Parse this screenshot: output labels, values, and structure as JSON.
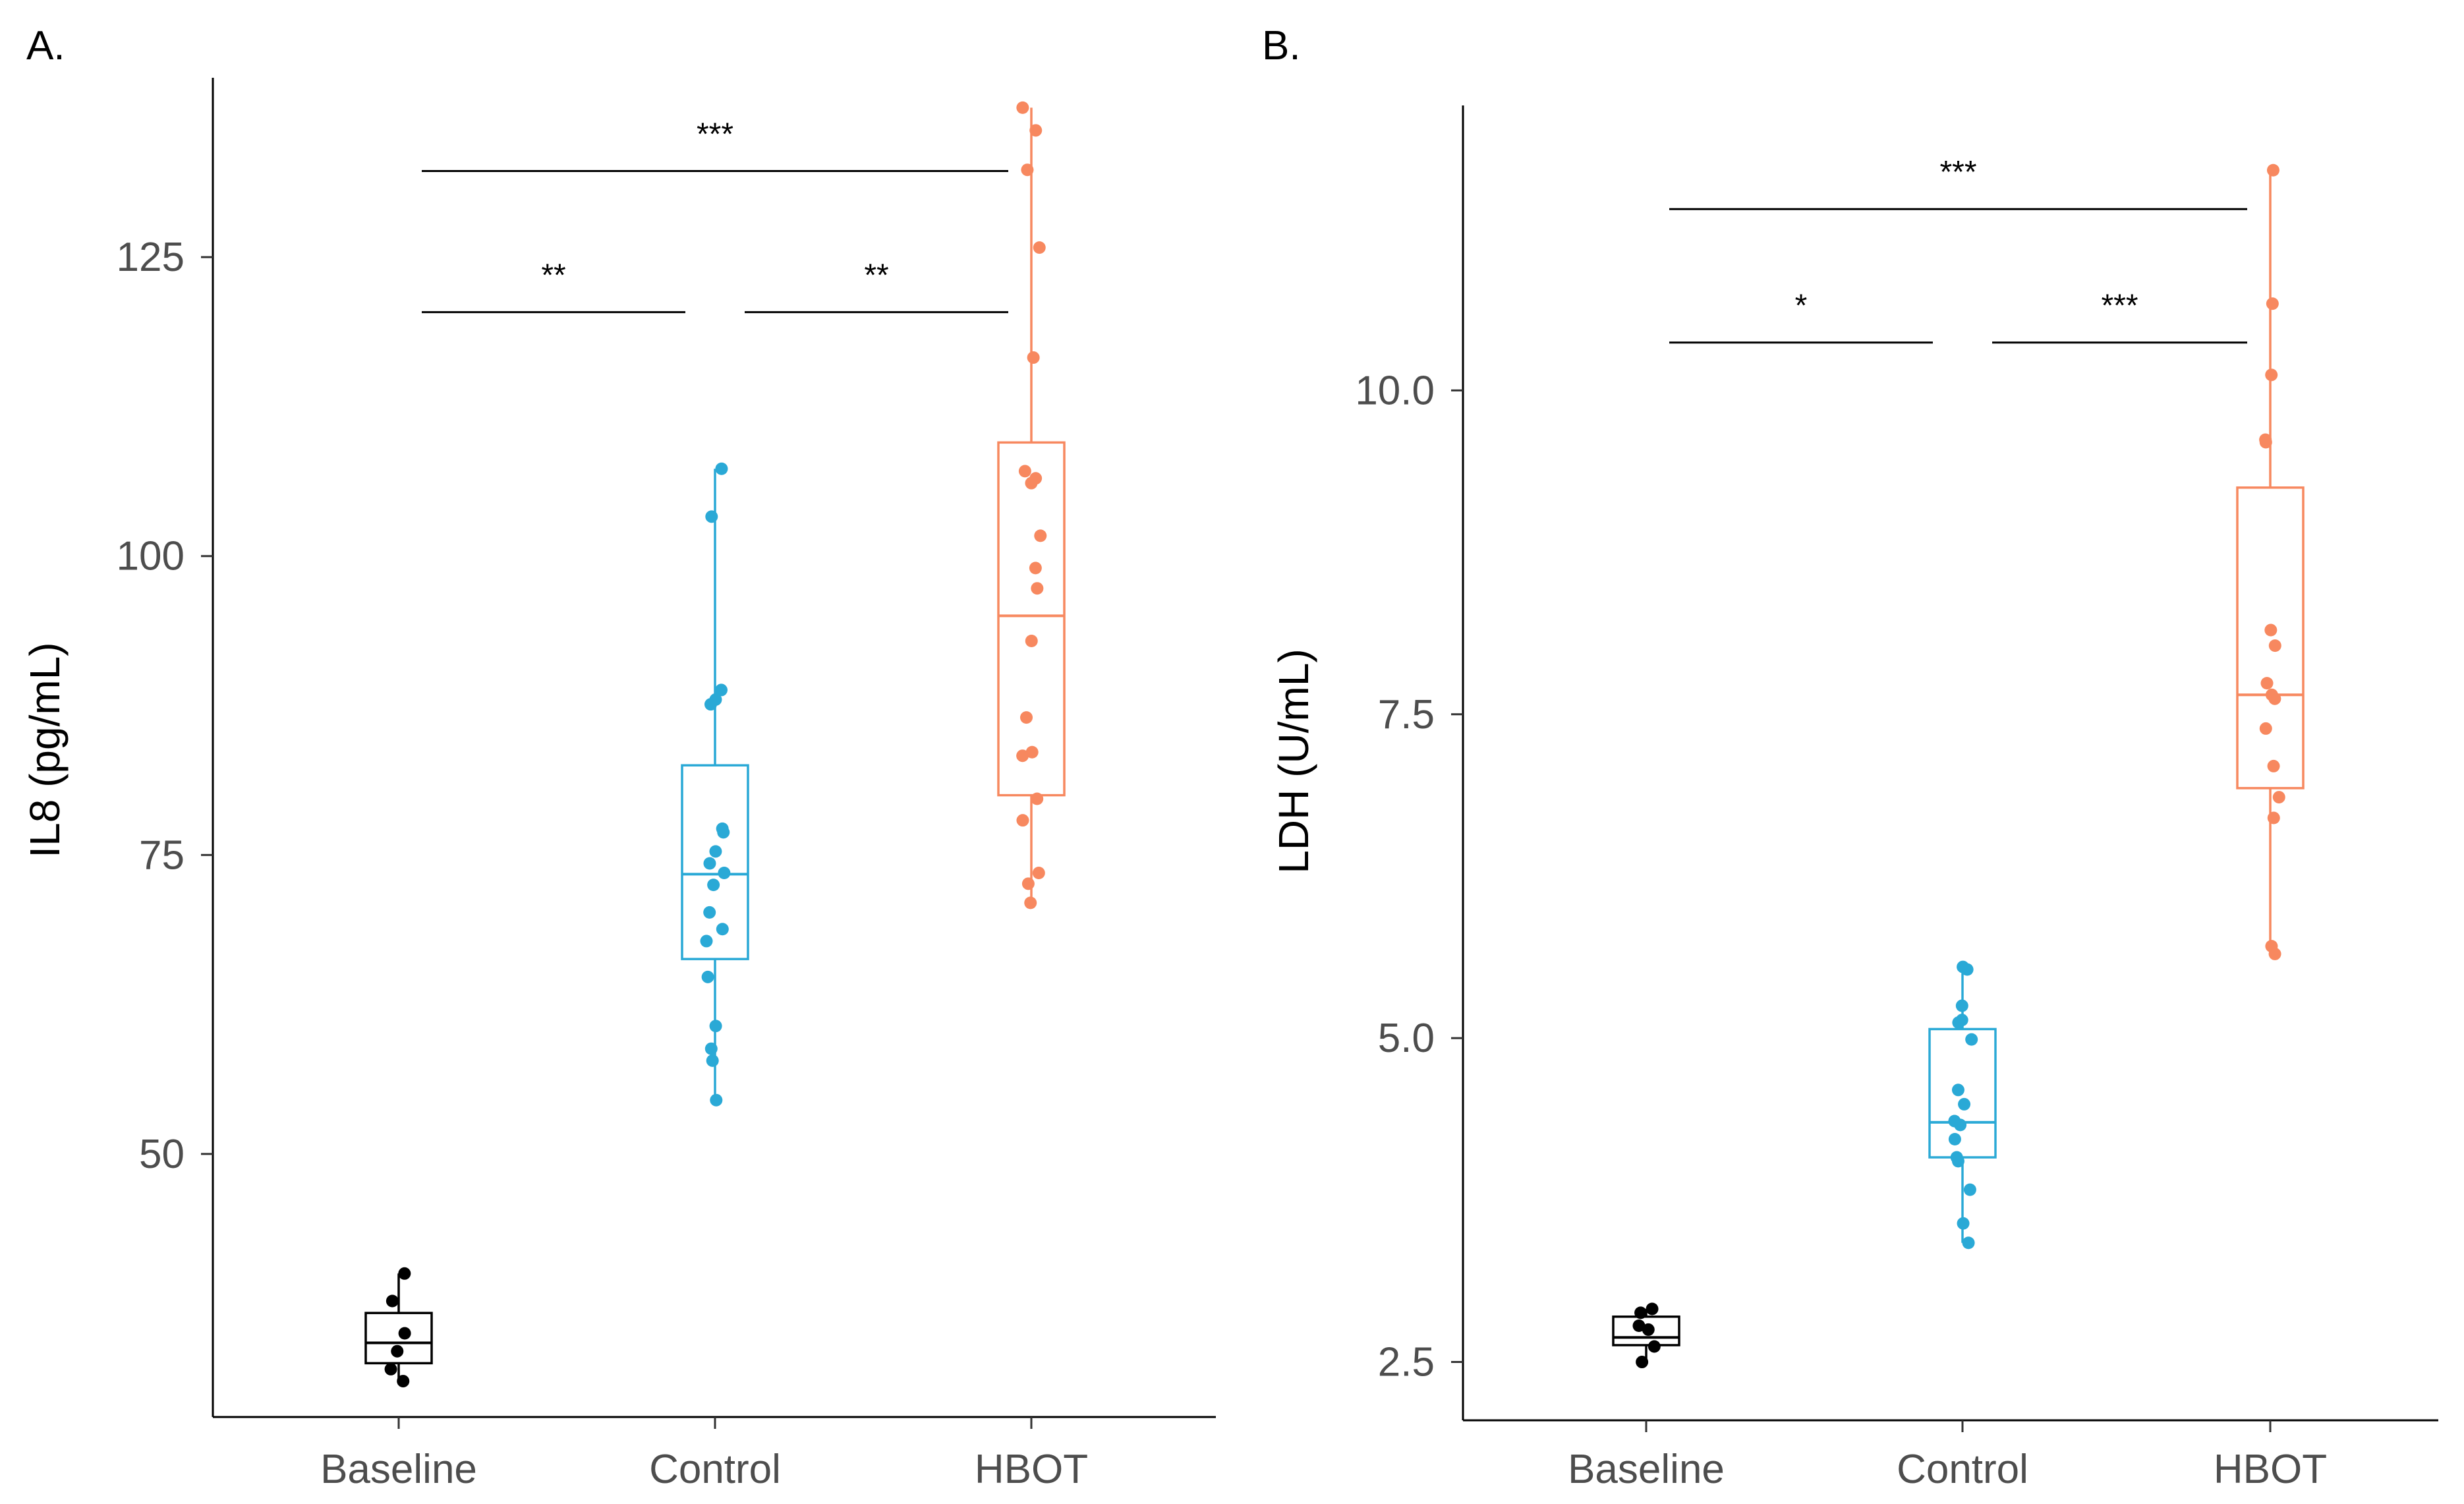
{
  "panels": [
    {
      "id": "A",
      "label": "A.",
      "ylabel": "IL8 (pg/mL)",
      "ylim": [
        28,
        140
      ],
      "yticks": [
        50,
        75,
        100,
        125
      ],
      "ytick_labels": [
        "50",
        "75",
        "100",
        "125"
      ],
      "categories": [
        "Baseline",
        "Control",
        "HBOT"
      ],
      "colors": [
        "#000000",
        "#2aa9d6",
        "#f7885f"
      ],
      "boxes": [
        {
          "group": "Baseline",
          "whisker_low": 31.0,
          "q1": 32.5,
          "median": 34.2,
          "q3": 36.7,
          "whisker_high": 40.0
        },
        {
          "group": "Control",
          "whisker_low": 54.5,
          "q1": 66.3,
          "median": 73.4,
          "q3": 82.5,
          "whisker_high": 107.3
        },
        {
          "group": "HBOT",
          "whisker_low": 71.0,
          "q1": 80.0,
          "median": 95.0,
          "q3": 109.5,
          "whisker_high": 137.5
        }
      ],
      "points": [
        [
          31.0,
          32.0,
          33.5,
          35.0,
          37.7,
          40.0
        ],
        [
          54.5,
          57.8,
          58.8,
          60.7,
          64.8,
          67.8,
          68.8,
          70.2,
          72.5,
          73.5,
          74.3,
          75.3,
          76.9,
          77.2,
          87.6,
          88.0,
          88.8,
          103.3,
          107.3
        ],
        [
          71.0,
          72.6,
          73.5,
          77.9,
          79.7,
          83.3,
          83.6,
          86.5,
          92.9,
          97.3,
          99.0,
          101.7,
          106.1,
          106.5,
          107.1,
          116.6,
          125.8,
          132.3,
          135.6,
          137.5
        ]
      ],
      "significance": [
        {
          "from": 0,
          "to": 2,
          "label": "***",
          "y": 132.2
        },
        {
          "from": 0,
          "to": 1,
          "label": "**",
          "y": 120.4
        },
        {
          "from": 1,
          "to": 2,
          "label": "**",
          "y": 120.4
        }
      ]
    },
    {
      "id": "B",
      "label": "B.",
      "ylabel": "LDH (U/mL)",
      "ylim": [
        2.05,
        12.2
      ],
      "yticks": [
        2.5,
        5.0,
        7.5,
        10.0
      ],
      "ytick_labels": [
        "2.5",
        "5.0",
        "7.5",
        "10.0"
      ],
      "categories": [
        "Baseline",
        "Control",
        "HBOT"
      ],
      "colors": [
        "#000000",
        "#2aa9d6",
        "#f7885f"
      ],
      "boxes": [
        {
          "group": "Baseline",
          "whisker_low": 2.5,
          "q1": 2.63,
          "median": 2.69,
          "q3": 2.85,
          "whisker_high": 2.91
        },
        {
          "group": "Control",
          "whisker_low": 3.42,
          "q1": 4.08,
          "median": 4.35,
          "q3": 5.07,
          "whisker_high": 5.55
        },
        {
          "group": "HBOT",
          "whisker_low": 5.65,
          "q1": 6.93,
          "median": 7.65,
          "q3": 9.25,
          "whisker_high": 11.7
        }
      ],
      "points": [
        [
          2.5,
          2.62,
          2.75,
          2.78,
          2.88,
          2.91
        ],
        [
          3.42,
          3.57,
          3.83,
          4.05,
          4.08,
          4.22,
          4.33,
          4.36,
          4.49,
          4.6,
          4.99,
          5.12,
          5.14,
          5.25,
          5.53,
          5.55
        ],
        [
          5.65,
          5.71,
          6.7,
          6.86,
          7.1,
          7.39,
          7.62,
          7.65,
          7.74,
          8.03,
          8.15,
          9.6,
          9.62,
          10.12,
          10.67,
          11.7
        ]
      ],
      "significance": [
        {
          "from": 0,
          "to": 2,
          "label": "***",
          "y": 11.4
        },
        {
          "from": 0,
          "to": 1,
          "label": "*",
          "y": 10.37
        },
        {
          "from": 1,
          "to": 2,
          "label": "***",
          "y": 10.37
        }
      ]
    }
  ],
  "chart_data": [
    {
      "type": "box",
      "title": "A.",
      "xlabel": "",
      "ylabel": "IL8 (pg/mL)",
      "categories": [
        "Baseline",
        "Control",
        "HBOT"
      ],
      "ylim": [
        28,
        140
      ],
      "grid": false,
      "series": [
        {
          "name": "Baseline",
          "q1": 32.5,
          "median": 34.2,
          "q3": 36.7,
          "whisker_low": 31.0,
          "whisker_high": 40.0,
          "points": [
            31.0,
            32.0,
            33.5,
            35.0,
            37.7,
            40.0
          ]
        },
        {
          "name": "Control",
          "q1": 66.3,
          "median": 73.4,
          "q3": 82.5,
          "whisker_low": 54.5,
          "whisker_high": 107.3,
          "points": [
            54.5,
            57.8,
            58.8,
            60.7,
            64.8,
            67.8,
            68.8,
            70.2,
            72.5,
            73.5,
            74.3,
            75.3,
            76.9,
            77.2,
            87.6,
            88.0,
            88.8,
            103.3,
            107.3
          ]
        },
        {
          "name": "HBOT",
          "q1": 80.0,
          "median": 95.0,
          "q3": 109.5,
          "whisker_low": 71.0,
          "whisker_high": 137.5,
          "points": [
            71.0,
            72.6,
            73.5,
            77.9,
            79.7,
            83.3,
            83.6,
            86.5,
            92.9,
            97.3,
            99.0,
            101.7,
            106.1,
            106.5,
            107.1,
            116.6,
            125.8,
            132.3,
            135.6,
            137.5
          ]
        }
      ],
      "annotations": [
        "Baseline vs HBOT: ***",
        "Baseline vs Control: **",
        "Control vs HBOT: **"
      ]
    },
    {
      "type": "box",
      "title": "B.",
      "xlabel": "",
      "ylabel": "LDH (U/mL)",
      "categories": [
        "Baseline",
        "Control",
        "HBOT"
      ],
      "ylim": [
        2.05,
        12.2
      ],
      "grid": false,
      "series": [
        {
          "name": "Baseline",
          "q1": 2.63,
          "median": 2.69,
          "q3": 2.85,
          "whisker_low": 2.5,
          "whisker_high": 2.91,
          "points": [
            2.5,
            2.62,
            2.75,
            2.78,
            2.88,
            2.91
          ]
        },
        {
          "name": "Control",
          "q1": 4.08,
          "median": 4.35,
          "q3": 5.07,
          "whisker_low": 3.42,
          "whisker_high": 5.55,
          "points": [
            3.42,
            3.57,
            3.83,
            4.05,
            4.08,
            4.22,
            4.33,
            4.36,
            4.49,
            4.6,
            4.99,
            5.12,
            5.14,
            5.25,
            5.53,
            5.55
          ]
        },
        {
          "name": "HBOT",
          "q1": 6.93,
          "median": 7.65,
          "q3": 9.25,
          "whisker_low": 5.65,
          "whisker_high": 11.7,
          "points": [
            5.65,
            5.71,
            6.7,
            6.86,
            7.1,
            7.39,
            7.62,
            7.65,
            7.74,
            8.03,
            8.15,
            9.6,
            9.62,
            10.12,
            10.67,
            11.7
          ]
        }
      ],
      "annotations": [
        "Baseline vs HBOT: ***",
        "Baseline vs Control: *",
        "Control vs HBOT: ***"
      ]
    }
  ]
}
